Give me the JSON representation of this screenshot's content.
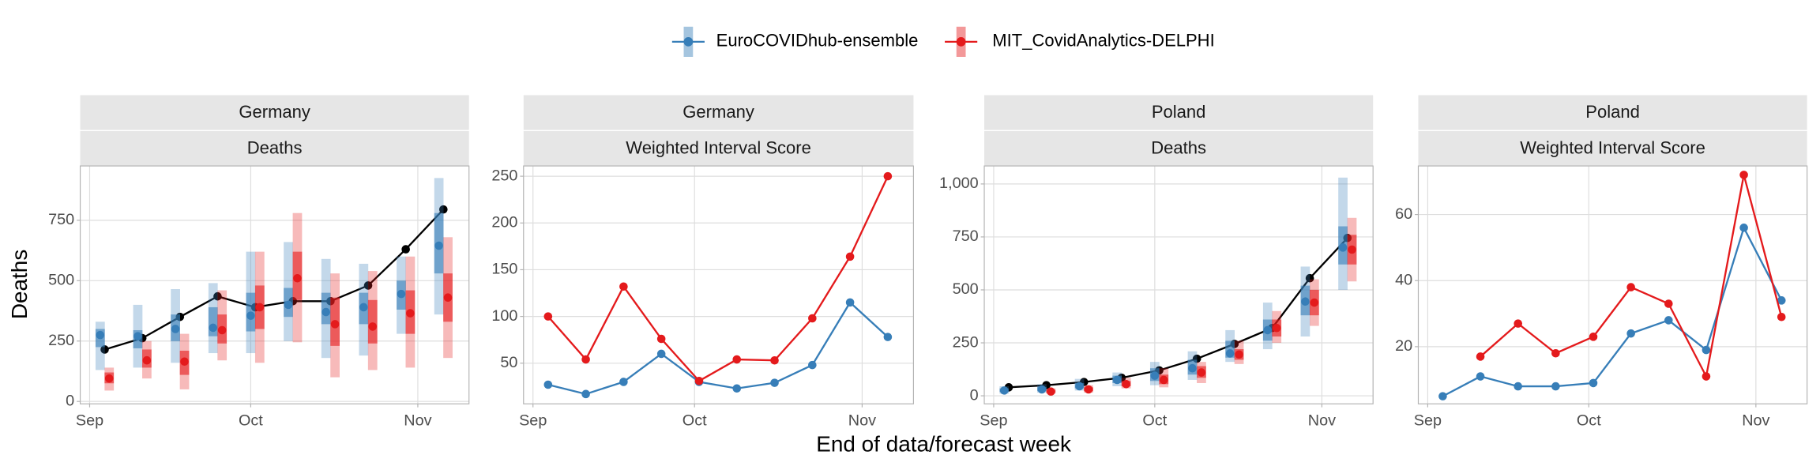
{
  "chart_data": [
    {
      "type": "forecast",
      "facet": [
        "Germany",
        "Deaths"
      ],
      "ylabel": "Deaths",
      "xlabel": "End of data/forecast week",
      "legend": "top",
      "grid": true,
      "categories": [
        null,
        null,
        null,
        null,
        null,
        null,
        null,
        null,
        null,
        null
      ],
      "xlim": [
        -0.65,
        9.68
      ],
      "xticks": [
        {
          "value": -0.4,
          "label": "Sep"
        },
        {
          "value": 3.88,
          "label": "Oct"
        },
        {
          "value": 8.32,
          "label": "Nov"
        }
      ],
      "ylim": [
        -10,
        975
      ],
      "yticks": [
        0,
        250,
        500,
        750
      ],
      "series": [
        {
          "color": "#000000",
          "values": [
            215,
            262,
            350,
            435,
            390,
            415,
            415,
            480,
            630,
            795
          ]
        },
        {
          "name": "EuroCOVIDhub-ensemble",
          "color": "#377eb8",
          "values": [
            275,
            270,
            300,
            305,
            355,
            400,
            370,
            390,
            445,
            645
          ],
          "lower_50": [
            225,
            220,
            250,
            270,
            290,
            350,
            320,
            320,
            380,
            530
          ],
          "upper_50": [
            300,
            295,
            360,
            390,
            450,
            470,
            450,
            450,
            500,
            780
          ],
          "lower_95": [
            130,
            140,
            160,
            200,
            200,
            250,
            180,
            190,
            280,
            360
          ],
          "upper_95": [
            330,
            400,
            465,
            490,
            620,
            660,
            590,
            570,
            600,
            925
          ]
        },
        {
          "name": "MIT_CovidAnalytics-DELPHI",
          "color": "#e41a1c",
          "values": [
            95,
            170,
            165,
            295,
            390,
            510,
            320,
            310,
            365,
            430
          ],
          "lower_50": [
            75,
            140,
            110,
            240,
            300,
            420,
            230,
            240,
            280,
            330
          ],
          "upper_50": [
            120,
            215,
            210,
            360,
            480,
            620,
            430,
            420,
            460,
            530
          ],
          "lower_95": [
            45,
            95,
            50,
            170,
            160,
            245,
            100,
            130,
            140,
            180
          ],
          "upper_95": [
            140,
            250,
            280,
            460,
            620,
            780,
            530,
            540,
            600,
            680
          ]
        }
      ]
    },
    {
      "type": "line",
      "facet": [
        "Germany",
        "Weighted Interval Score"
      ],
      "grid": true,
      "categories": [
        null,
        null,
        null,
        null,
        null,
        null,
        null,
        null,
        null,
        null
      ],
      "xlim": [
        -0.65,
        9.68
      ],
      "xticks": [
        {
          "value": -0.4,
          "label": "Sep"
        },
        {
          "value": 3.88,
          "label": "Oct"
        },
        {
          "value": 8.32,
          "label": "Nov"
        }
      ],
      "ylim": [
        6.5,
        261
      ],
      "yticks": [
        50,
        100,
        150,
        200,
        250
      ],
      "series": [
        {
          "color": "#377eb8",
          "values": [
            27,
            17,
            30,
            60,
            30,
            23,
            29,
            48,
            115,
            78
          ]
        },
        {
          "color": "#e41a1c",
          "values": [
            100,
            54,
            132,
            76,
            31,
            54,
            53,
            98,
            164,
            250
          ]
        }
      ]
    },
    {
      "type": "forecast",
      "facet": [
        "Poland",
        "Deaths"
      ],
      "grid": true,
      "categories": [
        null,
        null,
        null,
        null,
        null,
        null,
        null,
        null,
        null,
        null
      ],
      "xlim": [
        -0.65,
        9.68
      ],
      "xticks": [
        {
          "value": -0.4,
          "label": "Sep"
        },
        {
          "value": 3.88,
          "label": "Oct"
        },
        {
          "value": 8.32,
          "label": "Nov"
        }
      ],
      "ylim": [
        -38,
        1085
      ],
      "yticks": [
        0,
        250,
        500,
        750,
        {
          "value": 1000,
          "label": "1,000"
        }
      ],
      "series": [
        {
          "color": "#000000",
          "values": [
            40,
            50,
            65,
            85,
            120,
            175,
            245,
            320,
            555,
            745
          ]
        },
        {
          "color": "#377eb8",
          "values": [
            25,
            30,
            45,
            75,
            95,
            130,
            200,
            310,
            445,
            700
          ],
          "lower_50": [
            18,
            22,
            35,
            60,
            70,
            100,
            180,
            260,
            380,
            620
          ],
          "upper_50": [
            35,
            42,
            60,
            95,
            130,
            170,
            260,
            360,
            520,
            800
          ],
          "lower_95": [
            10,
            15,
            25,
            45,
            50,
            75,
            160,
            220,
            280,
            500
          ],
          "upper_95": [
            45,
            55,
            80,
            110,
            160,
            210,
            310,
            440,
            610,
            1030
          ]
        },
        {
          "color": "#e41a1c",
          "values": [
            null,
            20,
            30,
            55,
            75,
            110,
            195,
            320,
            440,
            690
          ],
          "lower_50": [
            null,
            15,
            22,
            45,
            55,
            85,
            170,
            280,
            380,
            620
          ],
          "upper_50": [
            null,
            28,
            40,
            70,
            100,
            140,
            220,
            360,
            500,
            760
          ],
          "lower_95": [
            null,
            10,
            15,
            35,
            40,
            60,
            150,
            250,
            330,
            540
          ],
          "upper_95": [
            null,
            35,
            50,
            85,
            130,
            160,
            260,
            400,
            550,
            840
          ]
        }
      ]
    },
    {
      "type": "line",
      "facet": [
        "Poland",
        "Weighted Interval Score"
      ],
      "grid": true,
      "categories": [
        null,
        null,
        null,
        null,
        null,
        null,
        null,
        null,
        null,
        null
      ],
      "xlim": [
        -0.65,
        9.68
      ],
      "xticks": [
        {
          "value": -0.4,
          "label": "Sep"
        },
        {
          "value": 3.88,
          "label": "Oct"
        },
        {
          "value": 8.32,
          "label": "Nov"
        }
      ],
      "ylim": [
        2.7,
        74.7
      ],
      "yticks": [
        20,
        40,
        60
      ],
      "series": [
        {
          "color": "#377eb8",
          "values": [
            5,
            11,
            8,
            8,
            9,
            24,
            28,
            19,
            56,
            34
          ]
        },
        {
          "color": "#e41a1c",
          "values": [
            null,
            17,
            27,
            18,
            23,
            38,
            33,
            11,
            72,
            29
          ]
        }
      ]
    }
  ]
}
